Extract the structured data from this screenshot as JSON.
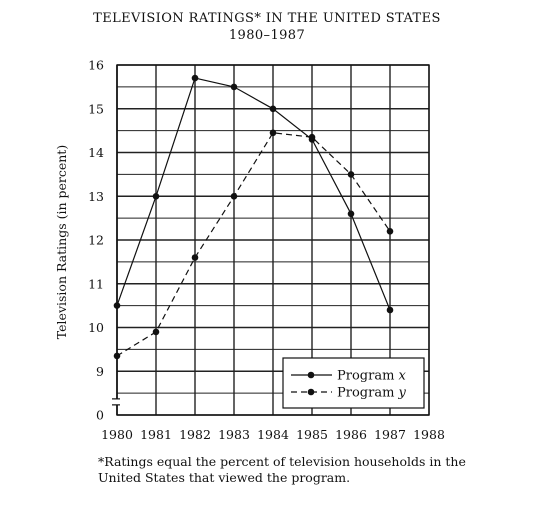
{
  "chart_data": {
    "type": "line",
    "title": "TELEVISION RATINGS* IN THE UNITED STATES",
    "subtitle": "1980–1987",
    "xlabel": "",
    "ylabel": "Television Ratings (in percent)",
    "x": [
      1980,
      1981,
      1982,
      1983,
      1984,
      1985,
      1986,
      1987
    ],
    "xlim": [
      1980,
      1988
    ],
    "ylim": [
      8,
      16
    ],
    "y_axis_break": true,
    "x_ticks": [
      "1980",
      "1981",
      "1982",
      "1983",
      "1984",
      "1985",
      "1986",
      "1987",
      "1988"
    ],
    "y_ticks": [
      "0",
      "9",
      "10",
      "11",
      "12",
      "13",
      "14",
      "15",
      "16"
    ],
    "grid": true,
    "legend_position": "bottom-right",
    "series": [
      {
        "name": "Program x",
        "name_text": "Program ",
        "name_var": "x",
        "line_style": "solid",
        "values": [
          10.5,
          13.0,
          15.7,
          15.5,
          15.0,
          14.3,
          12.6,
          10.4
        ]
      },
      {
        "name": "Program y",
        "name_text": "Program ",
        "name_var": "y",
        "line_style": "dashed",
        "values": [
          9.35,
          9.9,
          11.6,
          13.0,
          14.45,
          14.35,
          13.5,
          12.2
        ]
      }
    ],
    "footnote_lines": [
      "*Ratings equal the percent of television households in the",
      "United States that viewed the program."
    ],
    "colors": {
      "line": "#111111",
      "grid": "#222222"
    }
  }
}
